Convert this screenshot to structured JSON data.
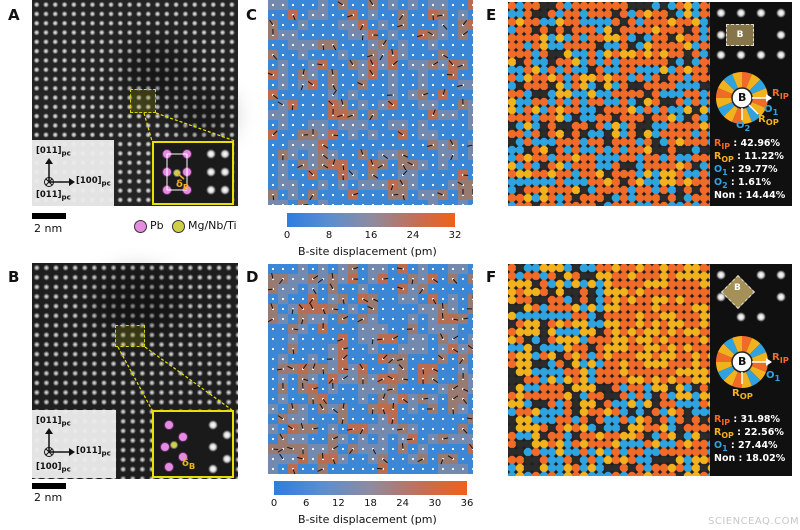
{
  "panels": {
    "A": {
      "letter": "A",
      "scale": "2 nm",
      "axes": {
        "up": "[011]",
        "right": "[100]",
        "out": "[011]",
        "sub": "pc"
      },
      "inset_label": "δ",
      "inset_sub": "B"
    },
    "B": {
      "letter": "B",
      "scale": "2 nm",
      "axes": {
        "up": "[011]",
        "right": "[011]",
        "out": "[100]",
        "sub": "pc"
      },
      "inset_label": "δ",
      "inset_sub": "B"
    },
    "C": {
      "letter": "C",
      "colorbar_title": "B-site displacement (pm)",
      "ticks": [
        "0",
        "8",
        "16",
        "24",
        "32"
      ]
    },
    "D": {
      "letter": "D",
      "colorbar_title": "B-site displacement (pm)",
      "ticks": [
        "0",
        "6",
        "12",
        "18",
        "24",
        "30",
        "36"
      ]
    },
    "E": {
      "letter": "E",
      "stats": [
        {
          "name": "R",
          "sub": "IP",
          "value": ": 42.96%",
          "color": "#f06a28"
        },
        {
          "name": "R",
          "sub": "OP",
          "value": ": 11.22%",
          "color": "#f2b21d"
        },
        {
          "name": "O",
          "sub": "1",
          "value": ": 29.77%",
          "color": "#2fa3e0"
        },
        {
          "name": "O",
          "sub": "2",
          "value": ": 1.61%",
          "color": "#2fa3e0"
        },
        {
          "name": "Non",
          "sub": "",
          "value": ": 14.44%",
          "color": "#ffffff"
        }
      ],
      "wheel": {
        "center": "B",
        "rip": "R",
        "rip_sub": "IP",
        "rop": "R",
        "rop_sub": "OP",
        "o1": "O",
        "o1_sub": "1",
        "o2": "O",
        "o2_sub": "2"
      },
      "cell_label": "B"
    },
    "F": {
      "letter": "F",
      "stats": [
        {
          "name": "R",
          "sub": "IP",
          "value": ": 31.98%",
          "color": "#f06a28"
        },
        {
          "name": "R",
          "sub": "OP",
          "value": ": 22.56%",
          "color": "#f2b21d"
        },
        {
          "name": "O",
          "sub": "1",
          "value": ": 27.44%",
          "color": "#2fa3e0"
        },
        {
          "name": "Non",
          "sub": "",
          "value": ": 18.02%",
          "color": "#ffffff"
        }
      ],
      "wheel": {
        "center": "B",
        "rip": "R",
        "rip_sub": "IP",
        "rop": "R",
        "rop_sub": "OP",
        "o1": "O",
        "o1_sub": "1"
      },
      "cell_label": "B"
    }
  },
  "legend": {
    "pb": "Pb",
    "b": "Mg/Nb/Ti",
    "pb_color": "#e58be0",
    "b_color": "#cfcf46"
  },
  "colors": {
    "rip": "#f06a28",
    "rop": "#f2b21d",
    "o": "#2fa3e0",
    "non": "#2b2b2b",
    "inset_yellow": "#e8e000"
  },
  "watermark": "SCIENCEAQ.COM"
}
